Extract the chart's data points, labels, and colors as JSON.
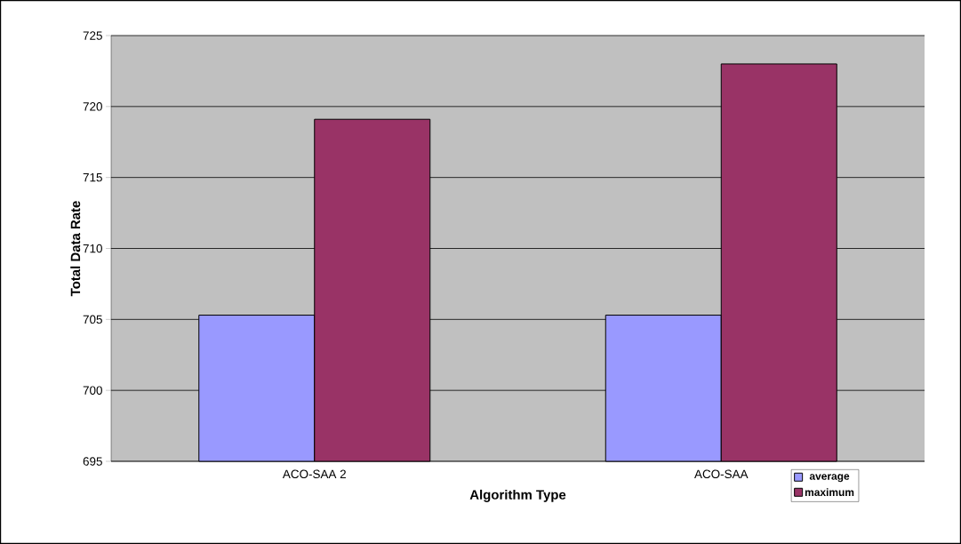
{
  "chart_data": {
    "type": "bar",
    "xlabel": "Algorithm Type",
    "ylabel": "Total Data Rate",
    "categories": [
      "ACO-SAA 2",
      "ACO-SAA"
    ],
    "series": [
      {
        "name": "average",
        "color": "#9999ff",
        "values": [
          705.3,
          705.3
        ]
      },
      {
        "name": "maximum",
        "color": "#993366",
        "values": [
          719.1,
          723.0
        ]
      }
    ],
    "ylim": [
      695,
      725
    ],
    "yticks": [
      695,
      700,
      705,
      710,
      715,
      720,
      725
    ],
    "grid": "y",
    "legend": "bottom right"
  }
}
